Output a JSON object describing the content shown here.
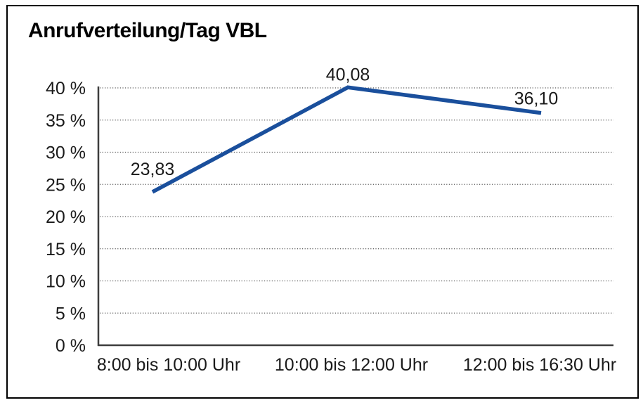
{
  "chart_data": {
    "type": "line",
    "title": "Anrufverteilung/Tag VBL",
    "categories": [
      "8:00 bis 10:00 Uhr",
      "10:00 bis 12:00 Uhr",
      "12:00 bis 16:30 Uhr"
    ],
    "series": [
      {
        "name": "Anrufverteilung",
        "values": [
          23.83,
          40.08,
          36.1
        ],
        "data_labels": [
          "23,83",
          "40,08",
          "36,10"
        ]
      }
    ],
    "xlabel": "",
    "ylabel": "",
    "ylim": [
      0,
      40
    ],
    "ytick_step": 5,
    "ytick_labels": [
      "0 %",
      "5 %",
      "10 %",
      "15 %",
      "20 %",
      "25 %",
      "30 %",
      "35 %",
      "40 %"
    ],
    "grid": "dotted-horizontal",
    "legend": "none",
    "colors": {
      "line": "#1A4F9C",
      "axis": "#3d3d3d",
      "gridline": "#5a5a5a",
      "text": "#1a1a1a",
      "frame_border": "#000000",
      "background": "#ffffff"
    }
  }
}
